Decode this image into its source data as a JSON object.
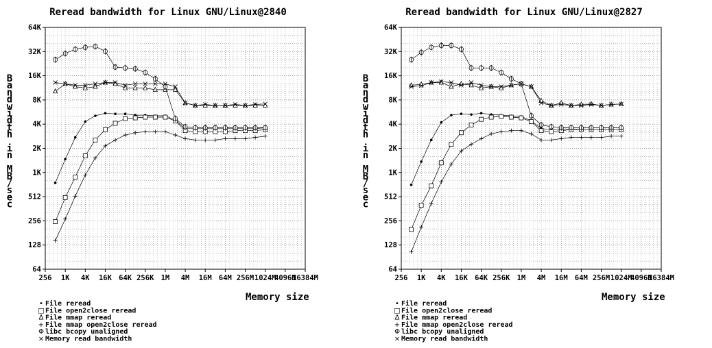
{
  "chart_data": [
    {
      "type": "line",
      "title": "Reread bandwidth for Linux GNU/Linux@2840",
      "xlabel": "Memory size",
      "ylabel": "Bandwidth in MB/sec",
      "x_scale": "log2",
      "y_scale": "log2",
      "grid": true,
      "legend_position": "bottom",
      "x_ticks": [
        "256",
        "1K",
        "4K",
        "16K",
        "64K",
        "256K",
        "1M",
        "4M",
        "16M",
        "64M",
        "256M",
        "1024M",
        "4096M",
        "16384M"
      ],
      "y_ticks": [
        "64",
        "128",
        "256",
        "512",
        "1K",
        "2K",
        "4K",
        "8K",
        "16K",
        "32K",
        "64K"
      ],
      "x_values_kb": [
        0.5,
        1,
        2,
        4,
        8,
        16,
        32,
        64,
        128,
        256,
        512,
        1024,
        2048,
        4096,
        8192,
        16384,
        32768,
        65536,
        131072,
        262144,
        524288,
        1048576
      ],
      "series": [
        {
          "name": "File reread",
          "marker": "dot",
          "values": [
            760,
            1500,
            2800,
            4400,
            5200,
            5600,
            5500,
            5500,
            5300,
            5300,
            5200,
            5200,
            4600,
            3600,
            3600,
            3600,
            3600,
            3600,
            3600,
            3600,
            3600,
            3700
          ]
        },
        {
          "name": "File open2close reread",
          "marker": "square",
          "values": [
            250,
            500,
            900,
            1650,
            2600,
            3500,
            4200,
            4800,
            4900,
            5000,
            5000,
            5000,
            4500,
            3400,
            3300,
            3300,
            3300,
            3300,
            3400,
            3400,
            3400,
            3500
          ]
        },
        {
          "name": "File mmap reread",
          "marker": "triangle",
          "values": [
            10500,
            13000,
            12000,
            11500,
            12000,
            13500,
            13000,
            11500,
            11500,
            11500,
            11000,
            11000,
            11000,
            7500,
            7000,
            7000,
            7000,
            7000,
            7000,
            7000,
            7000,
            7000
          ]
        },
        {
          "name": "File mmap open2close reread",
          "marker": "plus",
          "values": [
            145,
            270,
            520,
            950,
            1550,
            2200,
            2600,
            3000,
            3200,
            3300,
            3300,
            3300,
            3000,
            2700,
            2600,
            2600,
            2600,
            2700,
            2700,
            2700,
            2800,
            2900
          ]
        },
        {
          "name": "libc bcopy unaligned",
          "marker": "phi",
          "values": [
            26000,
            31000,
            35000,
            37000,
            38000,
            33000,
            21000,
            20500,
            20000,
            18000,
            15000,
            12000,
            4800,
            3800,
            3700,
            3700,
            3700,
            3700,
            3700,
            3700,
            3700,
            3700
          ]
        },
        {
          "name": "Memory read bandwidth",
          "marker": "x",
          "values": [
            13500,
            13000,
            12500,
            12500,
            13000,
            13500,
            13500,
            12500,
            13000,
            13000,
            13000,
            13000,
            12000,
            7500,
            7000,
            7200,
            7000,
            7000,
            7200,
            7000,
            7200,
            7300
          ]
        }
      ]
    },
    {
      "type": "line",
      "title": "Reread bandwidth for Linux GNU/Linux@2827",
      "xlabel": "Memory size",
      "ylabel": "Bandwidth in MB/sec",
      "x_scale": "log2",
      "y_scale": "log2",
      "grid": true,
      "legend_position": "bottom",
      "x_ticks": [
        "256",
        "1K",
        "4K",
        "16K",
        "64K",
        "256K",
        "1M",
        "4M",
        "16M",
        "64M",
        "256M",
        "1024M",
        "4096M",
        "16384M"
      ],
      "y_ticks": [
        "64",
        "128",
        "256",
        "512",
        "1K",
        "2K",
        "4K",
        "8K",
        "16K",
        "32K",
        "64K"
      ],
      "x_values_kb": [
        0.5,
        1,
        2,
        4,
        8,
        16,
        32,
        64,
        128,
        256,
        512,
        1024,
        2048,
        4096,
        8192,
        16384,
        32768,
        65536,
        131072,
        262144,
        524288,
        1048576
      ],
      "series": [
        {
          "name": "File reread",
          "marker": "dot",
          "values": [
            720,
            1400,
            2600,
            4300,
            5300,
            5500,
            5400,
            5600,
            5400,
            5300,
            5200,
            5100,
            4500,
            3600,
            3500,
            3500,
            3600,
            3500,
            3500,
            3500,
            3500,
            3500
          ]
        },
        {
          "name": "File open2close reread",
          "marker": "square",
          "values": [
            200,
            400,
            700,
            1350,
            2300,
            3200,
            4000,
            4700,
            5000,
            5100,
            5000,
            4900,
            4400,
            3400,
            3300,
            3400,
            3500,
            3500,
            3500,
            3500,
            3500,
            3500
          ]
        },
        {
          "name": "File mmap reread",
          "marker": "triangle",
          "values": [
            12500,
            12800,
            13500,
            13500,
            12000,
            13000,
            12500,
            11500,
            12000,
            11500,
            12500,
            13000,
            12000,
            8000,
            7000,
            7500,
            7000,
            7200,
            7300,
            7000,
            7200,
            7300
          ]
        },
        {
          "name": "File mmap open2close reread",
          "marker": "plus",
          "values": [
            105,
            215,
            420,
            780,
            1300,
            1900,
            2300,
            2700,
            3100,
            3300,
            3400,
            3400,
            3100,
            2600,
            2600,
            2700,
            2800,
            2800,
            2800,
            2800,
            2900,
            2900
          ]
        },
        {
          "name": "libc bcopy unaligned",
          "marker": "phi",
          "values": [
            26000,
            32000,
            37000,
            39000,
            39000,
            35000,
            20500,
            20500,
            20500,
            18000,
            15000,
            13000,
            5200,
            4000,
            3800,
            3700,
            3700,
            3700,
            3700,
            3700,
            3700,
            3700
          ]
        },
        {
          "name": "Memory read bandwidth",
          "marker": "x",
          "values": [
            12000,
            12300,
            13500,
            13800,
            13500,
            12500,
            13500,
            12500,
            12000,
            12000,
            12500,
            13000,
            12000,
            7500,
            7000,
            7200,
            7000,
            7000,
            7200,
            7000,
            7200,
            7300
          ]
        }
      ]
    }
  ],
  "legend_symbols": {
    "dot": "•",
    "square": "□",
    "triangle": "∆",
    "plus": "+",
    "phi": "Φ",
    "x": "×"
  }
}
